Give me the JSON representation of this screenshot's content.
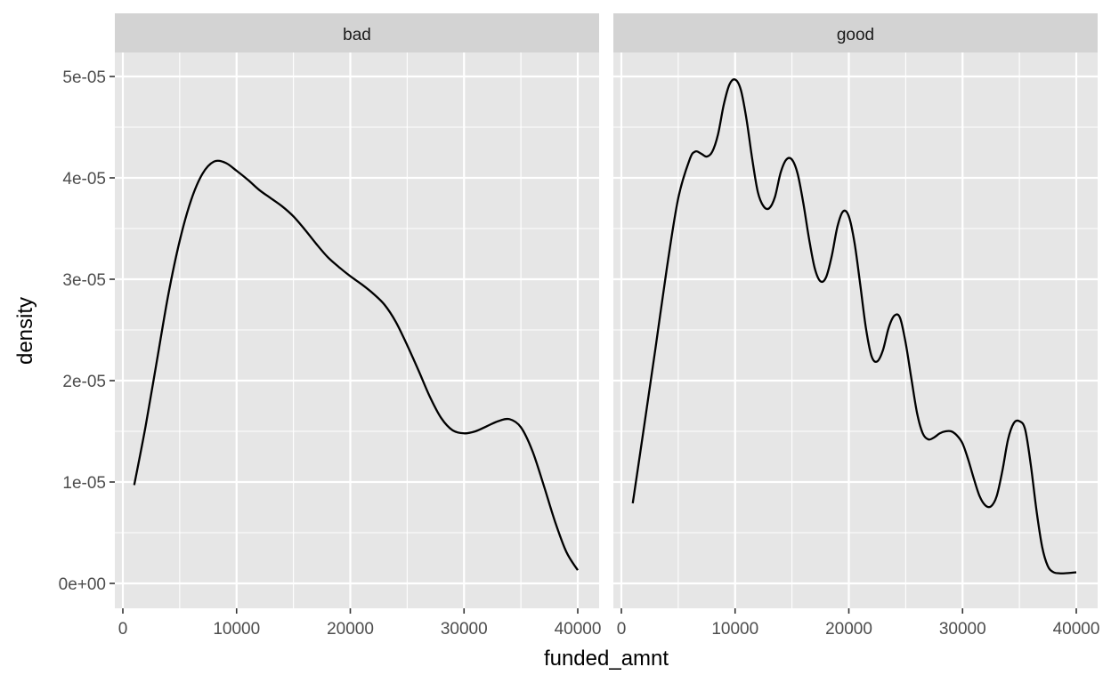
{
  "chart_data": {
    "type": "line",
    "chart_kind": "faceted density plot",
    "xlabel": "funded_amnt",
    "ylabel": "density",
    "xlim": [
      0,
      40000
    ],
    "ylim": [
      0,
      5e-05
    ],
    "x_ticks": [
      {
        "value": 0,
        "label": "0"
      },
      {
        "value": 10000,
        "label": "10000"
      },
      {
        "value": 20000,
        "label": "20000"
      },
      {
        "value": 30000,
        "label": "30000"
      },
      {
        "value": 40000,
        "label": "40000"
      }
    ],
    "y_ticks": [
      {
        "value": 0,
        "label": "0e+00"
      },
      {
        "value": 1e-05,
        "label": "1e-05"
      },
      {
        "value": 2e-05,
        "label": "2e-05"
      },
      {
        "value": 3e-05,
        "label": "3e-05"
      },
      {
        "value": 4e-05,
        "label": "4e-05"
      },
      {
        "value": 5e-05,
        "label": "5e-05"
      }
    ],
    "grid": true,
    "panel_background": "#e6e6e6",
    "strip_background": "#d3d3d3",
    "line_color": "#000000",
    "facets": [
      {
        "label": "bad",
        "x": [
          1000,
          2000,
          3000,
          4000,
          5000,
          6000,
          7000,
          8000,
          9000,
          10000,
          11000,
          12000,
          13000,
          14000,
          15000,
          16000,
          17000,
          18000,
          19000,
          20000,
          21000,
          22000,
          23000,
          24000,
          25000,
          26000,
          27000,
          28000,
          29000,
          30000,
          31000,
          32000,
          33000,
          34000,
          35000,
          36000,
          37000,
          38000,
          39000,
          40000
        ],
        "y": [
          9.7e-06,
          1.55e-05,
          2.2e-05,
          2.85e-05,
          3.38e-05,
          3.78e-05,
          4.04e-05,
          4.16e-05,
          4.15e-05,
          4.07e-05,
          3.98e-05,
          3.88e-05,
          3.8e-05,
          3.72e-05,
          3.62e-05,
          3.49e-05,
          3.35e-05,
          3.22e-05,
          3.12e-05,
          3.03e-05,
          2.95e-05,
          2.86e-05,
          2.75e-05,
          2.58e-05,
          2.35e-05,
          2.1e-05,
          1.84e-05,
          1.63e-05,
          1.51e-05,
          1.48e-05,
          1.5e-05,
          1.55e-05,
          1.6e-05,
          1.62e-05,
          1.54e-05,
          1.31e-05,
          9.7e-06,
          6.1e-06,
          3.1e-06,
          1.3e-06
        ]
      },
      {
        "label": "good",
        "x": [
          1000,
          2000,
          3000,
          4000,
          5000,
          6000,
          6500,
          7000,
          7500,
          8000,
          8500,
          9000,
          9500,
          10000,
          10500,
          11000,
          11500,
          12000,
          12500,
          13000,
          13500,
          14000,
          14500,
          15000,
          15500,
          16000,
          16500,
          17000,
          17500,
          18000,
          18500,
          19000,
          19500,
          20000,
          20500,
          21000,
          21500,
          22000,
          22500,
          23000,
          23500,
          24000,
          24500,
          25000,
          25500,
          26000,
          26500,
          27000,
          27500,
          28000,
          28500,
          29000,
          29500,
          30000,
          30500,
          31000,
          31500,
          32000,
          32500,
          33000,
          33500,
          34000,
          34500,
          35000,
          35500,
          36000,
          36500,
          37000,
          37500,
          38000,
          38500,
          39000,
          40000
        ],
        "y": [
          7.9e-06,
          1.55e-05,
          2.32e-05,
          3.11e-05,
          3.8e-05,
          4.18e-05,
          4.26e-05,
          4.24e-05,
          4.21e-05,
          4.26e-05,
          4.43e-05,
          4.72e-05,
          4.92e-05,
          4.97e-05,
          4.87e-05,
          4.58e-05,
          4.19e-05,
          3.86e-05,
          3.72e-05,
          3.7e-05,
          3.81e-05,
          4.05e-05,
          4.18e-05,
          4.18e-05,
          4.04e-05,
          3.75e-05,
          3.4e-05,
          3.11e-05,
          2.98e-05,
          3.02e-05,
          3.23e-05,
          3.52e-05,
          3.67e-05,
          3.62e-05,
          3.36e-05,
          2.95e-05,
          2.52e-05,
          2.24e-05,
          2.19e-05,
          2.3e-05,
          2.52e-05,
          2.64e-05,
          2.62e-05,
          2.37e-05,
          2.02e-05,
          1.68e-05,
          1.48e-05,
          1.42e-05,
          1.44e-05,
          1.48e-05,
          1.5e-05,
          1.5e-05,
          1.46e-05,
          1.38e-05,
          1.22e-05,
          1.03e-05,
          8.6e-06,
          7.7e-06,
          7.6e-06,
          8.6e-06,
          1.11e-05,
          1.42e-05,
          1.58e-05,
          1.6e-05,
          1.52e-05,
          1.17e-05,
          7.2e-06,
          3.6e-06,
          1.7e-06,
          1.1e-06,
          1e-06,
          1e-06,
          1.1e-06
        ]
      }
    ]
  }
}
